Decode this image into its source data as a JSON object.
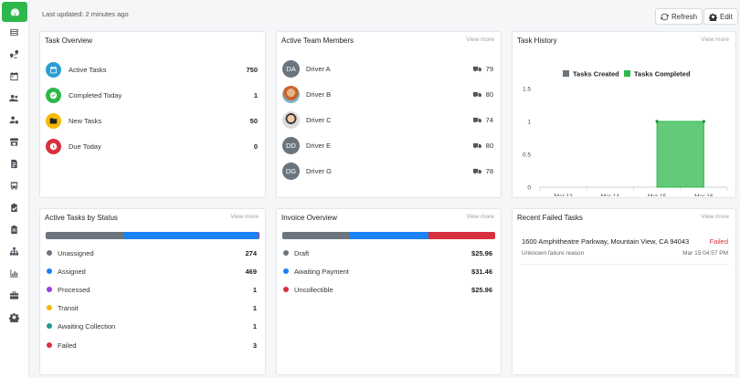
{
  "topbar": {
    "last_updated": "Last updated: 2 minutes ago",
    "refresh_label": "Refresh",
    "edit_label": "Edit"
  },
  "sidebar": {
    "items": [
      "dashboard-icon",
      "list-icon",
      "map-route-icon",
      "calendar-icon",
      "users-icon",
      "user-settings-icon",
      "store-icon",
      "document-icon",
      "bus-icon",
      "clipboard-check-icon",
      "clipboard-icon",
      "hierarchy-icon",
      "bar-chart-icon",
      "toolbox-icon",
      "gear-icon"
    ]
  },
  "task_overview": {
    "title": "Task Overview",
    "items": [
      {
        "label": "Active Tasks",
        "value": "750",
        "color": "#2a9fd6",
        "icon": "calendar-icon"
      },
      {
        "label": "Completed Today",
        "value": "1",
        "color": "#2eb84b",
        "icon": "check-icon"
      },
      {
        "label": "New Tasks",
        "value": "50",
        "color": "#f6b900",
        "icon": "folder-icon"
      },
      {
        "label": "Due Today",
        "value": "0",
        "color": "#d9303e",
        "icon": "clock-icon"
      }
    ]
  },
  "team": {
    "title": "Active Team Members",
    "view_more": "View more",
    "members": [
      {
        "initials": "DA",
        "name": "Driver A",
        "count": "79",
        "photo": false
      },
      {
        "initials": "",
        "name": "Driver B",
        "count": "80",
        "photo": true
      },
      {
        "initials": "",
        "name": "Driver C",
        "count": "74",
        "photo": true
      },
      {
        "initials": "DD",
        "name": "Driver E",
        "count": "80",
        "photo": false
      },
      {
        "initials": "DG",
        "name": "Driver G",
        "count": "78",
        "photo": false
      }
    ]
  },
  "history": {
    "title": "Task History",
    "view_more": "View more"
  },
  "chart_data": {
    "type": "area",
    "categories": [
      "Mar 13",
      "Mar 14",
      "Mar 15",
      "Mar 16"
    ],
    "series": [
      {
        "name": "Tasks Created",
        "values": [
          0,
          0,
          0,
          0
        ],
        "color": "#6c757d"
      },
      {
        "name": "Tasks Completed",
        "values": [
          0,
          0,
          1,
          1
        ],
        "color": "#2eb84b"
      }
    ],
    "yticks": [
      "0",
      "0.5",
      "1",
      "1.5"
    ],
    "ylim": [
      0,
      1.5
    ],
    "legend": "top"
  },
  "status": {
    "title": "Active Tasks by Status",
    "view_more": "View more",
    "bar": [
      {
        "color": "#6c757d",
        "value": 274
      },
      {
        "color": "#1a82f6",
        "value": 469
      },
      {
        "color": "#d9303e",
        "value": 3
      }
    ],
    "items": [
      {
        "label": "Unassigned",
        "value": "274",
        "color": "#6c757d"
      },
      {
        "label": "Assigned",
        "value": "469",
        "color": "#1a82f6"
      },
      {
        "label": "Processed",
        "value": "1",
        "color": "#9b3de0"
      },
      {
        "label": "Transit",
        "value": "1",
        "color": "#f6b900"
      },
      {
        "label": "Awaiting Collection",
        "value": "1",
        "color": "#1a9e8e"
      },
      {
        "label": "Failed",
        "value": "3",
        "color": "#d9303e"
      }
    ]
  },
  "invoice": {
    "title": "Invoice Overview",
    "view_more": "View more",
    "bar": [
      {
        "color": "#6c757d",
        "value": 25.96
      },
      {
        "color": "#1a82f6",
        "value": 31.46
      },
      {
        "color": "#d9303e",
        "value": 25.96
      }
    ],
    "items": [
      {
        "label": "Draft",
        "value": "$25.96",
        "color": "#6c757d"
      },
      {
        "label": "Awaiting Payment",
        "value": "$31.46",
        "color": "#1a82f6"
      },
      {
        "label": "Uncollectible",
        "value": "$25.96",
        "color": "#d9303e"
      }
    ]
  },
  "failed": {
    "title": "Recent Failed Tasks",
    "view_more": "View more",
    "address": "1600 Amphitheatre Parkway, Mountain View, CA 94043",
    "status": "Failed",
    "reason": "Unknown failure reason",
    "timestamp": "Mar 15 04:57 PM"
  }
}
